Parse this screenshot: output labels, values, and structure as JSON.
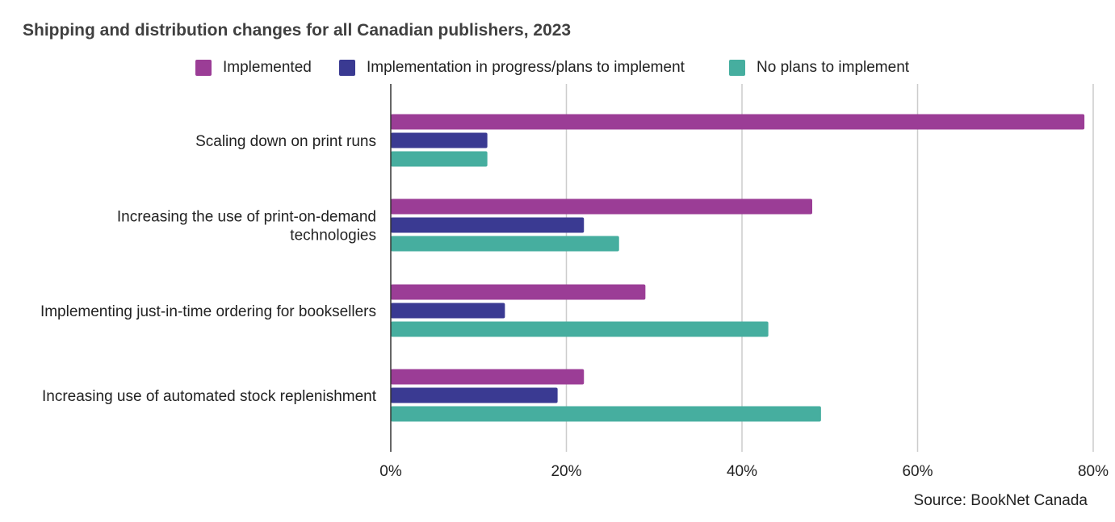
{
  "chart_data": {
    "type": "bar",
    "orientation": "horizontal",
    "title": "Shipping and distribution changes for all Canadian publishers, 2023",
    "categories": [
      [
        "Scaling down on print runs"
      ],
      [
        "Increasing the use of print-on-demand",
        "technologies"
      ],
      [
        "Implementing just-in-time ordering for booksellers"
      ],
      [
        "Increasing use of automated stock replenishment"
      ]
    ],
    "series": [
      {
        "name": "Implemented",
        "color": "#9b3d96",
        "values": [
          79,
          48,
          29,
          22
        ]
      },
      {
        "name": "Implementation in progress/plans to implement",
        "color": "#3a3a92",
        "values": [
          11,
          22,
          13,
          19
        ]
      },
      {
        "name": "No plans to implement",
        "color": "#46ae9f",
        "values": [
          11,
          26,
          43,
          49
        ]
      }
    ],
    "xlim": [
      0,
      80
    ],
    "xticks": [
      "0%",
      "20%",
      "40%",
      "60%",
      "80%"
    ],
    "xtick_values": [
      0,
      20,
      40,
      60,
      80
    ],
    "grid": true,
    "legend_position": "top",
    "source": "Source: BookNet Canada"
  }
}
